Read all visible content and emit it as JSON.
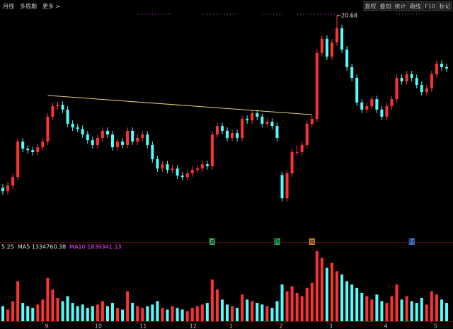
{
  "toolbar": {
    "left": [
      "月线",
      "多周期",
      "更多 >"
    ],
    "right": [
      "复权",
      "叠加",
      "统计",
      "画线",
      "F10",
      "标记"
    ]
  },
  "chart_data": {
    "type": "candlestick",
    "candles": [
      [
        14.6,
        14.72,
        14.36,
        14.48
      ],
      [
        14.48,
        14.8,
        14.36,
        14.68
      ],
      [
        14.68,
        15.1,
        14.56,
        14.98
      ],
      [
        14.98,
        16.35,
        14.86,
        16.23
      ],
      [
        16.23,
        16.35,
        15.86,
        15.98
      ],
      [
        15.98,
        16.1,
        15.81,
        15.93
      ],
      [
        15.93,
        16.05,
        15.74,
        15.86
      ],
      [
        15.86,
        16.15,
        15.74,
        16.03
      ],
      [
        16.03,
        16.35,
        15.91,
        16.23
      ],
      [
        16.23,
        17.23,
        16.11,
        17.11
      ],
      [
        17.11,
        17.6,
        16.99,
        17.48
      ],
      [
        17.48,
        17.65,
        17.36,
        17.53
      ],
      [
        17.53,
        17.65,
        17.24,
        17.36
      ],
      [
        17.36,
        17.48,
        16.74,
        16.86
      ],
      [
        16.86,
        16.98,
        16.61,
        16.73
      ],
      [
        16.73,
        16.85,
        16.56,
        16.68
      ],
      [
        16.68,
        16.8,
        16.36,
        16.48
      ],
      [
        16.48,
        16.6,
        16.16,
        16.28
      ],
      [
        16.28,
        16.4,
        15.99,
        16.11
      ],
      [
        16.11,
        16.48,
        15.99,
        16.36
      ],
      [
        16.36,
        16.73,
        16.24,
        16.61
      ],
      [
        16.61,
        16.73,
        16.36,
        16.48
      ],
      [
        16.48,
        16.6,
        15.91,
        16.03
      ],
      [
        16.03,
        16.35,
        15.91,
        16.23
      ],
      [
        16.23,
        16.35,
        15.99,
        16.11
      ],
      [
        16.11,
        16.73,
        15.99,
        16.61
      ],
      [
        16.61,
        16.73,
        16.11,
        16.23
      ],
      [
        16.23,
        16.48,
        16.11,
        16.36
      ],
      [
        16.36,
        16.6,
        16.24,
        16.48
      ],
      [
        16.48,
        16.6,
        15.99,
        16.11
      ],
      [
        16.11,
        16.23,
        15.49,
        15.61
      ],
      [
        15.61,
        15.73,
        15.16,
        15.28
      ],
      [
        15.28,
        15.55,
        15.16,
        15.43
      ],
      [
        15.43,
        15.55,
        15.11,
        15.23
      ],
      [
        15.23,
        15.4,
        15.11,
        15.28
      ],
      [
        15.28,
        15.4,
        14.91,
        15.03
      ],
      [
        15.03,
        15.15,
        14.86,
        14.98
      ],
      [
        14.98,
        15.23,
        14.86,
        15.11
      ],
      [
        15.11,
        15.35,
        14.99,
        15.23
      ],
      [
        15.23,
        15.4,
        15.11,
        15.28
      ],
      [
        15.28,
        15.55,
        15.16,
        15.43
      ],
      [
        15.43,
        15.55,
        15.24,
        15.36
      ],
      [
        15.36,
        16.6,
        15.24,
        16.48
      ],
      [
        16.48,
        16.9,
        16.36,
        16.78
      ],
      [
        16.78,
        16.9,
        16.49,
        16.61
      ],
      [
        16.61,
        16.73,
        16.24,
        16.36
      ],
      [
        16.36,
        16.65,
        16.24,
        16.53
      ],
      [
        16.53,
        16.65,
        16.24,
        16.36
      ],
      [
        16.36,
        17.15,
        16.24,
        17.03
      ],
      [
        17.03,
        17.15,
        16.86,
        16.98
      ],
      [
        16.98,
        17.35,
        16.86,
        17.23
      ],
      [
        17.23,
        17.35,
        16.99,
        17.11
      ],
      [
        17.11,
        17.23,
        16.74,
        16.86
      ],
      [
        16.86,
        17.05,
        16.74,
        16.93
      ],
      [
        16.93,
        17.05,
        16.66,
        16.78
      ],
      [
        16.78,
        16.9,
        16.24,
        16.36
      ],
      [
        15.05,
        15.17,
        14.11,
        14.23
      ],
      [
        14.23,
        15.23,
        14.11,
        15.11
      ],
      [
        15.11,
        15.98,
        14.99,
        15.86
      ],
      [
        15.86,
        16.1,
        15.74,
        15.86
      ],
      [
        15.86,
        16.23,
        15.74,
        16.11
      ],
      [
        16.11,
        16.98,
        15.99,
        16.86
      ],
      [
        16.86,
        17.15,
        16.74,
        17.03
      ],
      [
        17.03,
        19.48,
        16.91,
        19.36
      ],
      [
        19.36,
        19.98,
        19.24,
        19.86
      ],
      [
        19.86,
        19.98,
        19.11,
        19.23
      ],
      [
        19.23,
        19.85,
        19.11,
        19.73
      ],
      [
        19.73,
        20.68,
        19.61,
        20.23
      ],
      [
        20.23,
        20.35,
        19.36,
        19.48
      ],
      [
        19.48,
        19.6,
        18.74,
        18.86
      ],
      [
        18.86,
        18.98,
        18.36,
        18.48
      ],
      [
        18.48,
        18.6,
        17.49,
        17.61
      ],
      [
        17.61,
        17.73,
        17.24,
        17.36
      ],
      [
        17.36,
        17.6,
        17.24,
        17.48
      ],
      [
        17.48,
        17.85,
        17.36,
        17.73
      ],
      [
        17.73,
        17.85,
        17.24,
        17.36
      ],
      [
        17.36,
        17.48,
        16.99,
        17.11
      ],
      [
        17.11,
        17.6,
        16.99,
        17.48
      ],
      [
        17.48,
        17.85,
        17.36,
        17.73
      ],
      [
        17.73,
        18.6,
        17.61,
        18.48
      ],
      [
        18.48,
        18.6,
        18.24,
        18.36
      ],
      [
        18.36,
        18.73,
        18.24,
        18.61
      ],
      [
        18.61,
        18.73,
        18.36,
        18.48
      ],
      [
        18.48,
        18.6,
        18.11,
        18.23
      ],
      [
        18.23,
        18.35,
        17.86,
        17.98
      ],
      [
        17.98,
        18.23,
        17.86,
        18.11
      ],
      [
        18.11,
        18.73,
        17.99,
        18.61
      ],
      [
        18.61,
        19.1,
        18.49,
        18.98
      ],
      [
        18.98,
        19.1,
        18.74,
        18.86
      ],
      [
        18.86,
        18.98,
        18.69,
        18.81
      ]
    ],
    "volume": [
      900000,
      700000,
      1200000,
      2400000,
      1100000,
      900000,
      800000,
      1000000,
      1300000,
      2600000,
      1900000,
      1400000,
      1200000,
      1500000,
      1100000,
      900000,
      1000000,
      800000,
      900000,
      1000000,
      1200000,
      900000,
      1100000,
      800000,
      700000,
      1800000,
      1100000,
      900000,
      800000,
      900000,
      1000000,
      1200000,
      800000,
      700000,
      900000,
      800000,
      700000,
      600000,
      800000,
      900000,
      1000000,
      1100000,
      2500000,
      1900000,
      1300000,
      1000000,
      900000,
      800000,
      1600000,
      1300000,
      1200000,
      1100000,
      1000000,
      900000,
      800000,
      1200000,
      2200000,
      1800000,
      2100000,
      1700000,
      1500000,
      2000000,
      2300000,
      4200000,
      3800000,
      3200000,
      3500000,
      3000000,
      2800000,
      2400000,
      2200000,
      2000000,
      1700000,
      1500000,
      1300000,
      1600000,
      1200000,
      1100000,
      1500000,
      2200000,
      1300000,
      1500000,
      1200000,
      1100000,
      1400000,
      1000000,
      1800000,
      1600000,
      1300000,
      1100000
    ],
    "up_color": "#ff3232",
    "down_color": "#54fcfc",
    "volume_legend": [
      {
        "text": "5.25",
        "color": "#dddddd"
      },
      {
        "text": "MA5 1334760.38",
        "color": "#dddddd"
      },
      {
        "text": "MA10 1839341.13",
        "color": "#ff40ff"
      }
    ],
    "xticks": [
      {
        "value": 8,
        "label": "9"
      },
      {
        "value": 18,
        "label": "10"
      },
      {
        "value": 27,
        "label": "11"
      },
      {
        "value": 37,
        "label": "12"
      },
      {
        "value": 45,
        "label": "1"
      },
      {
        "value": 55,
        "label": "2"
      },
      {
        "value": 65,
        "label": "3"
      },
      {
        "value": 76,
        "label": "4"
      },
      {
        "value": 86,
        "label": "5"
      }
    ],
    "trendline": {
      "start_index": 9,
      "start_price": 17.86,
      "end_index": 62,
      "end_price": 17.18,
      "color": "#e6d27a"
    },
    "events": [
      {
        "index": 42,
        "label": "减",
        "color": "#33cc66"
      },
      {
        "index": 55,
        "label": "跌",
        "color": "#33cc66"
      },
      {
        "index": 62,
        "label": "增",
        "color": "#ff9933"
      },
      {
        "index": 82,
        "label": "财",
        "color": "#4a8cff"
      }
    ]
  }
}
